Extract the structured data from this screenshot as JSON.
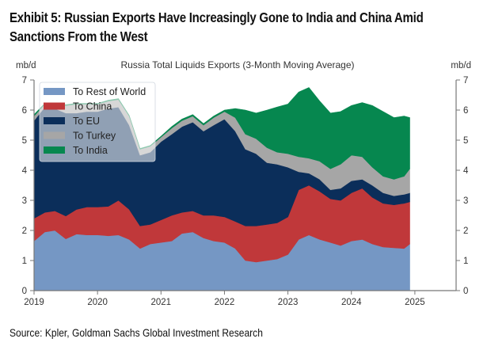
{
  "exhibit": {
    "title": "Exhibit 5: Russian Exports Have Increasingly Gone to India and China Amid Sanctions From the West",
    "title_line1": "Exhibit 5: Russian Exports Have Increasingly Gone to India and China Amid",
    "title_line2": "Sanctions From the West",
    "source": "Source: Kpler, Goldman Sachs Global Investment Research"
  },
  "chart_data": {
    "type": "area",
    "stacked": true,
    "title": "Russia Total Liquids Exports (3-Month Moving Average)",
    "ylabel_left": "mb/d",
    "ylabel_right": "mb/d",
    "ylim": [
      0,
      7
    ],
    "xlim": [
      2019,
      2025.65
    ],
    "yticks": [
      "0",
      "1",
      "2",
      "3",
      "4",
      "5",
      "6",
      "7"
    ],
    "xticks": [
      "2019",
      "2020",
      "2021",
      "2022",
      "2023",
      "2024",
      "2025"
    ],
    "legend_position": "top-left",
    "grid": false,
    "x": [
      2019.0,
      2019.17,
      2019.33,
      2019.5,
      2019.67,
      2019.83,
      2020.0,
      2020.17,
      2020.33,
      2020.5,
      2020.67,
      2020.83,
      2021.0,
      2021.17,
      2021.33,
      2021.5,
      2021.67,
      2021.83,
      2022.0,
      2022.17,
      2022.33,
      2022.5,
      2022.67,
      2022.83,
      2023.0,
      2023.17,
      2023.33,
      2023.5,
      2023.67,
      2023.83,
      2024.0,
      2024.17,
      2024.33,
      2024.5,
      2024.67,
      2024.83,
      2024.92
    ],
    "series": [
      {
        "name": "To Rest of World",
        "color": "#7597c4",
        "values": [
          1.65,
          1.95,
          2.0,
          1.72,
          1.88,
          1.85,
          1.85,
          1.82,
          1.85,
          1.7,
          1.4,
          1.55,
          1.6,
          1.65,
          1.9,
          1.95,
          1.75,
          1.65,
          1.6,
          1.4,
          1.0,
          0.95,
          1.0,
          1.05,
          1.2,
          1.7,
          1.85,
          1.7,
          1.6,
          1.5,
          1.65,
          1.7,
          1.55,
          1.45,
          1.42,
          1.4,
          1.55
        ]
      },
      {
        "name": "To China",
        "color": "#c0383a",
        "values": [
          0.75,
          0.65,
          0.65,
          0.76,
          0.82,
          0.93,
          0.93,
          0.98,
          1.15,
          1.0,
          0.75,
          0.65,
          0.75,
          0.85,
          0.7,
          0.7,
          0.75,
          0.85,
          0.85,
          0.9,
          1.15,
          1.2,
          1.2,
          1.2,
          1.25,
          1.65,
          1.65,
          1.6,
          1.45,
          1.5,
          1.6,
          1.7,
          1.55,
          1.45,
          1.43,
          1.5,
          1.4
        ]
      },
      {
        "name": "To EU",
        "color": "#0b2e5a",
        "values": [
          3.25,
          3.5,
          3.4,
          3.42,
          3.2,
          3.17,
          3.17,
          3.25,
          3.1,
          2.8,
          2.35,
          2.4,
          2.6,
          2.7,
          2.85,
          2.95,
          2.8,
          3.0,
          3.25,
          3.0,
          2.55,
          2.4,
          2.05,
          1.95,
          1.65,
          0.6,
          0.4,
          0.4,
          0.3,
          0.4,
          0.4,
          0.3,
          0.4,
          0.35,
          0.3,
          0.3,
          0.3
        ]
      },
      {
        "name": "To Turkey",
        "color": "#a6a6a6",
        "values": [
          0.15,
          0.1,
          0.15,
          0.25,
          0.3,
          0.25,
          0.25,
          0.25,
          0.25,
          0.3,
          0.2,
          0.2,
          0.15,
          0.2,
          0.2,
          0.2,
          0.2,
          0.25,
          0.25,
          0.45,
          0.5,
          0.5,
          0.5,
          0.4,
          0.45,
          0.5,
          0.5,
          0.6,
          0.7,
          0.8,
          0.85,
          0.75,
          0.6,
          0.55,
          0.55,
          0.6,
          0.8
        ]
      },
      {
        "name": "To India",
        "color": "#06874f",
        "values": [
          0.05,
          0.02,
          0.02,
          0.03,
          0.02,
          0.02,
          0.02,
          0.03,
          0.03,
          0.02,
          0.02,
          0.02,
          0.03,
          0.05,
          0.05,
          0.05,
          0.05,
          0.05,
          0.05,
          0.3,
          0.8,
          0.85,
          1.25,
          1.5,
          1.65,
          2.15,
          2.35,
          2.0,
          1.85,
          1.75,
          1.65,
          1.8,
          2.05,
          2.15,
          2.05,
          2.0,
          1.7
        ]
      }
    ]
  }
}
